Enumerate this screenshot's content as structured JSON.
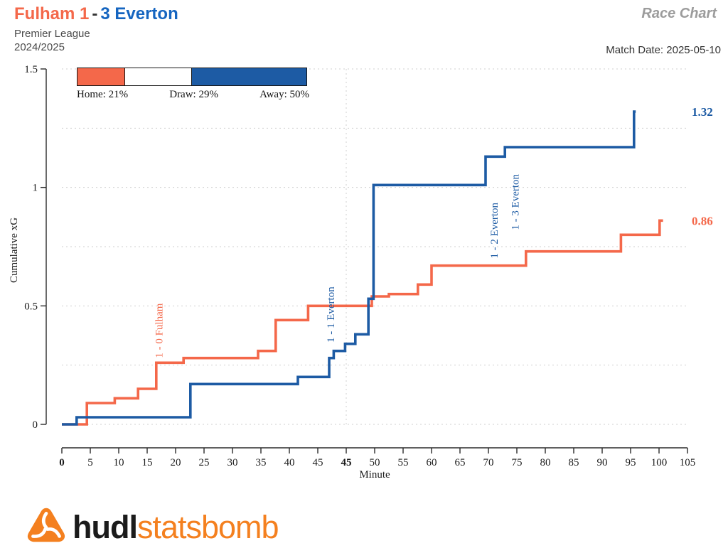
{
  "header": {
    "title_home": "Fulham 1",
    "title_separator": "-",
    "title_away": "3 Everton",
    "competition": "Premier League",
    "season": "2024/2025",
    "chart_type_label": "Race Chart",
    "match_date_label": "Match Date: 2025-05-10"
  },
  "colors": {
    "home": "#F4684A",
    "away": "#1D5BA4",
    "title_home": "#F4684A",
    "title_away": "#1565C0",
    "draw": "#FFFFFF"
  },
  "legend": {
    "items": [
      {
        "label": "Home: 21%",
        "pct": 21,
        "fill": "home"
      },
      {
        "label": "Draw: 29%",
        "pct": 29,
        "fill": "draw"
      },
      {
        "label": "Away: 50%",
        "pct": 50,
        "fill": "away"
      }
    ]
  },
  "brand": {
    "part1": "hudl",
    "part2": "statsbomb"
  },
  "chart_data": {
    "type": "line",
    "subtype": "step-race-cumulative-xg",
    "title": "Fulham 1 - 3 Everton cumulative xG race",
    "x_axis": {
      "label": "Minute",
      "tick_labels": [
        "0",
        "5",
        "10",
        "15",
        "20",
        "25",
        "30",
        "35",
        "40",
        "45",
        "45",
        "50",
        "55",
        "60",
        "65",
        "70",
        "75",
        "80",
        "85",
        "90",
        "95",
        "100",
        "105"
      ],
      "tick_spacing_units": 5,
      "bold_tick_indices": [
        0,
        10
      ],
      "halftime_unit": 50
    },
    "y_axis": {
      "label": "Cumulative xG",
      "tick_labels": [
        "0",
        "0.5",
        "1",
        "1.5"
      ],
      "tick_values": [
        0,
        0.5,
        1,
        1.5
      ],
      "range": [
        0,
        1.5
      ],
      "grid_step": 0.25
    },
    "series": [
      {
        "name": "Fulham",
        "side": "home",
        "color": "#F4684A",
        "final_xg": 0.86,
        "final_label": "0.86",
        "end_unit": 105.7,
        "steps": [
          [
            4.4,
            0.09
          ],
          [
            9.3,
            0.11
          ],
          [
            13.4,
            0.15
          ],
          [
            16.6,
            0.26
          ],
          [
            21.4,
            0.28
          ],
          [
            34.5,
            0.31
          ],
          [
            37.6,
            0.44
          ],
          [
            43.3,
            0.5
          ],
          [
            54.5,
            0.54
          ],
          [
            57.5,
            0.55
          ],
          [
            62.6,
            0.59
          ],
          [
            65,
            0.67
          ],
          [
            81.6,
            0.73
          ],
          [
            98.3,
            0.8
          ],
          [
            105.1,
            0.86
          ]
        ]
      },
      {
        "name": "Everton",
        "side": "away",
        "color": "#1D5BA4",
        "final_xg": 1.32,
        "final_label": "1.32",
        "end_unit": 100.9,
        "steps": [
          [
            2.6,
            0.03
          ],
          [
            22.6,
            0.17
          ],
          [
            41.5,
            0.2
          ],
          [
            47,
            0.28
          ],
          [
            47.8,
            0.31
          ],
          [
            49.8,
            0.34
          ],
          [
            51.6,
            0.38
          ],
          [
            53.9,
            0.53
          ],
          [
            54.8,
            1.01
          ],
          [
            74.5,
            1.13
          ],
          [
            77.9,
            1.17
          ],
          [
            100.6,
            1.32
          ]
        ]
      }
    ],
    "goals": [
      {
        "label": "1 - 0 Fulham",
        "side": "home",
        "unit": 17.7,
        "v_bottom": 0.28
      },
      {
        "label": "1 - 1 Everton",
        "side": "away",
        "unit": 47.9,
        "v_bottom": 0.345
      },
      {
        "label": "1 - 2 Everton",
        "side": "away",
        "unit": 76.6,
        "v_bottom": 0.7
      },
      {
        "label": "1 - 3 Everton",
        "side": "away",
        "unit": 80.3,
        "v_bottom": 0.82
      }
    ]
  }
}
